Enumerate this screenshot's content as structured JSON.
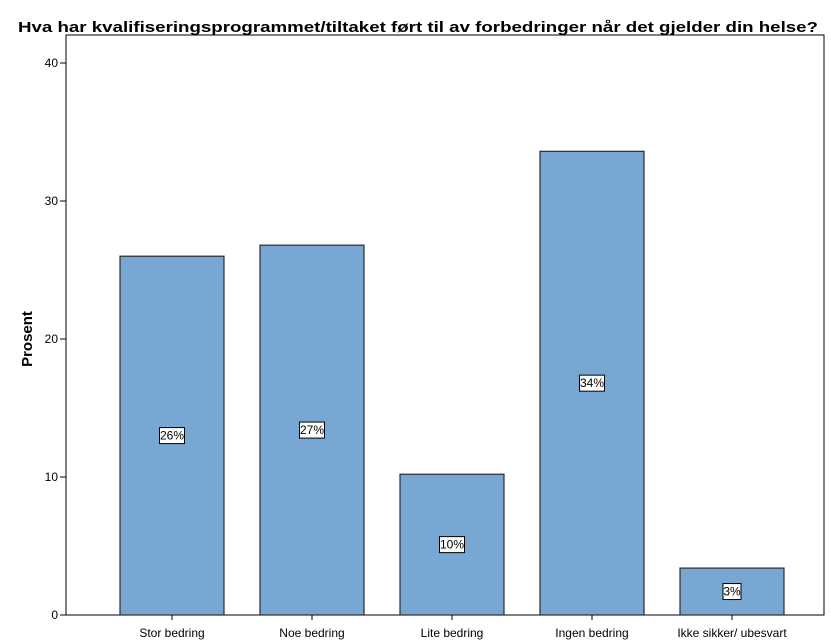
{
  "chart_data": {
    "type": "bar",
    "title": "Hva har kvalifiseringsprogrammet/tiltaket ført til av forbedringer når det gjelder din helse?",
    "xlabel": "",
    "ylabel": "Prosent",
    "categories": [
      "Stor bedring",
      "Noe bedring",
      "Lite bedring",
      "Ingen bedring",
      "Ikke sikker/ ubesvart"
    ],
    "values": [
      26.0,
      26.8,
      10.2,
      33.6,
      3.4
    ],
    "data_labels": [
      "26%",
      "27%",
      "10%",
      "34%",
      "3%"
    ],
    "ylim": [
      0,
      40
    ],
    "yticks": [
      0,
      10,
      20,
      30,
      40
    ],
    "grid": false,
    "colors": {
      "bar_fill": "#79a7d4",
      "bar_stroke": "#2b2b2b",
      "plot_border": "#000000"
    }
  }
}
